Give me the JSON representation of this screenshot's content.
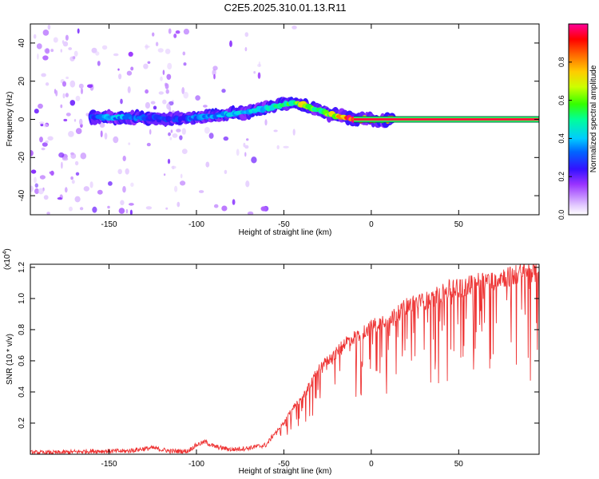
{
  "title": "C2E5.2025.310.01.13.R11",
  "chart_data": [
    {
      "type": "heatmap",
      "xlabel": "Height of straight line (km)",
      "ylabel": "Frequency (Hz)",
      "xlim": [
        -195,
        96
      ],
      "ylim": [
        -50,
        50
      ],
      "xticks": [
        -150,
        -100,
        -50,
        0,
        50
      ],
      "yticks": [
        -40,
        -20,
        0,
        20,
        40
      ],
      "colorbar": {
        "label": "Normalized spectral amplitude",
        "range": [
          0,
          1
        ],
        "ticks": [
          0.0,
          0.2,
          0.4,
          0.6,
          0.8
        ],
        "colormap": [
          "#ffffff",
          "#e8d8ff",
          "#9933ff",
          "#1a1aff",
          "#00b7ff",
          "#00ff66",
          "#aaff00",
          "#ffff00",
          "#ff9900",
          "#ff0000",
          "#ff0099"
        ]
      },
      "ridge": {
        "x": [
          -160,
          -145,
          -130,
          -115,
          -100,
          -90,
          -80,
          -70,
          -60,
          -55,
          -50,
          -45,
          -40,
          -35,
          -30,
          -25,
          -20,
          -15,
          -10,
          -5,
          0,
          5,
          10,
          30,
          50,
          70,
          96
        ],
        "y": [
          1,
          1,
          1,
          0,
          1,
          2,
          3,
          4,
          6,
          7,
          8,
          9,
          8,
          6,
          5,
          3,
          2,
          1,
          0,
          0,
          0,
          -1,
          0,
          0,
          0,
          0,
          0
        ],
        "amplitude": [
          0.32,
          0.4,
          0.3,
          0.28,
          0.35,
          0.38,
          0.42,
          0.4,
          0.45,
          0.5,
          0.55,
          0.6,
          0.7,
          0.62,
          0.55,
          0.6,
          0.75,
          0.9,
          0.92,
          0.88,
          0.85,
          0.5,
          0.95,
          0.95,
          0.95,
          0.95,
          0.95
        ]
      },
      "background_noise": {
        "bands": [
          [
            -195,
            -165,
            0.3
          ],
          [
            -165,
            -135,
            0.14
          ],
          [
            -130,
            -105,
            0.26
          ],
          [
            -100,
            -65,
            0.09
          ],
          [
            -65,
            -40,
            0.05
          ]
        ]
      }
    },
    {
      "type": "line",
      "xlabel": "Height of straight line (km)",
      "ylabel": "SNR (10 * v/v)",
      "multiplier_label": "(x10",
      "multiplier_exponent": "4",
      "xlim": [
        -195,
        96
      ],
      "ylim": [
        0,
        1.22
      ],
      "xticks": [
        -150,
        -100,
        -50,
        0,
        50
      ],
      "yticks": [
        0.2,
        0.4,
        0.6,
        0.8,
        1.0,
        1.2
      ],
      "color": "#ee3333",
      "series": [
        {
          "name": "SNR",
          "x": [
            -195,
            -180,
            -160,
            -140,
            -130,
            -125,
            -115,
            -105,
            -100,
            -95,
            -90,
            -80,
            -70,
            -60,
            -55,
            -50,
            -45,
            -40,
            -35,
            -30,
            -25,
            -20,
            -15,
            -10,
            -5,
            0,
            5,
            10,
            15,
            20,
            25,
            30,
            35,
            40,
            45,
            50,
            55,
            60,
            65,
            70,
            75,
            80,
            85,
            90,
            96
          ],
          "y": [
            0.01,
            0.01,
            0.02,
            0.02,
            0.035,
            0.04,
            0.02,
            0.02,
            0.06,
            0.08,
            0.05,
            0.03,
            0.04,
            0.06,
            0.14,
            0.2,
            0.3,
            0.35,
            0.45,
            0.55,
            0.6,
            0.65,
            0.72,
            0.75,
            0.78,
            0.82,
            0.85,
            0.88,
            0.9,
            0.95,
            0.97,
            0.98,
            1.0,
            1.03,
            1.06,
            1.07,
            1.08,
            1.1,
            1.12,
            1.13,
            1.14,
            1.14,
            1.16,
            1.18,
            1.16
          ]
        }
      ]
    }
  ]
}
